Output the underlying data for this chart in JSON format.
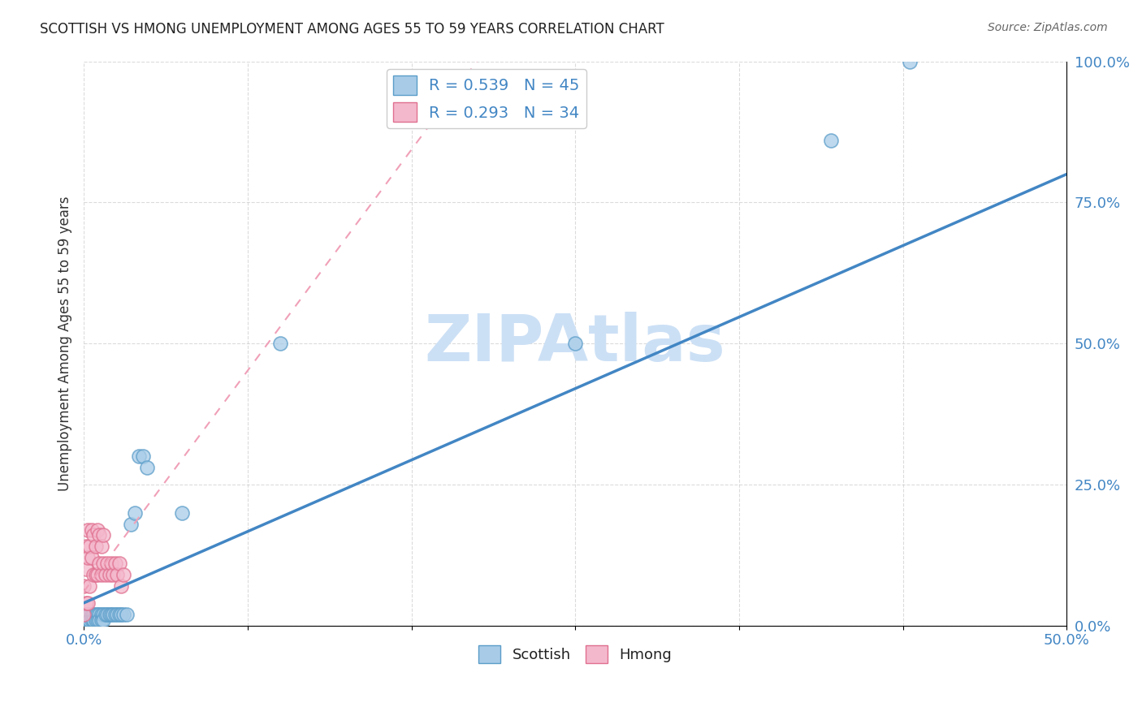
{
  "title": "SCOTTISH VS HMONG UNEMPLOYMENT AMONG AGES 55 TO 59 YEARS CORRELATION CHART",
  "source": "Source: ZipAtlas.com",
  "ylabel": "Unemployment Among Ages 55 to 59 years",
  "xlim": [
    0.0,
    0.5
  ],
  "ylim": [
    0.0,
    1.0
  ],
  "xticks": [
    0.0,
    0.0833,
    0.1667,
    0.25,
    0.3333,
    0.4167,
    0.5
  ],
  "xtick_labels": [
    "0.0%",
    "",
    "",
    "",
    "",
    "",
    "50.0%"
  ],
  "yticks": [
    0.0,
    0.25,
    0.5,
    0.75,
    1.0
  ],
  "ytick_labels": [
    "0.0%",
    "25.0%",
    "50.0%",
    "75.0%",
    "100.0%"
  ],
  "scottish_R": 0.539,
  "scottish_N": 45,
  "hmong_R": 0.293,
  "hmong_N": 34,
  "scottish_color": "#a8cce8",
  "hmong_color": "#f4b8cc",
  "scottish_edge_color": "#5b9dc9",
  "hmong_edge_color": "#e07090",
  "scottish_line_color": "#4286c4",
  "hmong_line_color": "#f0a0b8",
  "tick_color": "#4286c4",
  "watermark": "ZIPAtlas",
  "watermark_color": "#cce0f5",
  "background_color": "#ffffff",
  "grid_color": "#cccccc",
  "scottish_x": [
    0.0,
    0.001,
    0.001,
    0.002,
    0.002,
    0.002,
    0.003,
    0.003,
    0.003,
    0.004,
    0.004,
    0.005,
    0.005,
    0.005,
    0.006,
    0.006,
    0.007,
    0.007,
    0.008,
    0.008,
    0.009,
    0.009,
    0.01,
    0.01,
    0.011,
    0.012,
    0.013,
    0.014,
    0.015,
    0.016,
    0.017,
    0.018,
    0.019,
    0.02,
    0.022,
    0.024,
    0.026,
    0.028,
    0.03,
    0.032,
    0.05,
    0.1,
    0.25,
    0.38,
    0.42
  ],
  "scottish_y": [
    0.01,
    0.01,
    0.02,
    0.01,
    0.02,
    0.01,
    0.01,
    0.02,
    0.01,
    0.02,
    0.01,
    0.01,
    0.02,
    0.01,
    0.02,
    0.01,
    0.02,
    0.01,
    0.02,
    0.01,
    0.02,
    0.01,
    0.02,
    0.01,
    0.02,
    0.02,
    0.02,
    0.02,
    0.02,
    0.02,
    0.02,
    0.02,
    0.02,
    0.02,
    0.02,
    0.18,
    0.2,
    0.3,
    0.3,
    0.28,
    0.2,
    0.5,
    0.5,
    0.86,
    1.0
  ],
  "hmong_x": [
    0.0,
    0.0,
    0.001,
    0.001,
    0.001,
    0.002,
    0.002,
    0.002,
    0.003,
    0.003,
    0.004,
    0.004,
    0.005,
    0.005,
    0.006,
    0.006,
    0.007,
    0.007,
    0.008,
    0.008,
    0.009,
    0.009,
    0.01,
    0.01,
    0.011,
    0.012,
    0.013,
    0.014,
    0.015,
    0.016,
    0.017,
    0.018,
    0.019,
    0.02
  ],
  "hmong_y": [
    0.02,
    0.07,
    0.04,
    0.1,
    0.14,
    0.04,
    0.12,
    0.17,
    0.07,
    0.14,
    0.12,
    0.17,
    0.09,
    0.16,
    0.09,
    0.14,
    0.09,
    0.17,
    0.11,
    0.16,
    0.09,
    0.14,
    0.11,
    0.16,
    0.09,
    0.11,
    0.09,
    0.11,
    0.09,
    0.11,
    0.09,
    0.11,
    0.07,
    0.09
  ],
  "scottish_trendline_x0": 0.0,
  "scottish_trendline_y0": 0.04,
  "scottish_trendline_x1": 0.5,
  "scottish_trendline_y1": 0.8,
  "hmong_trendline_x0": 0.0,
  "hmong_trendline_y0": 0.06,
  "hmong_trendline_x1": 0.2,
  "hmong_trendline_y1": 1.0
}
